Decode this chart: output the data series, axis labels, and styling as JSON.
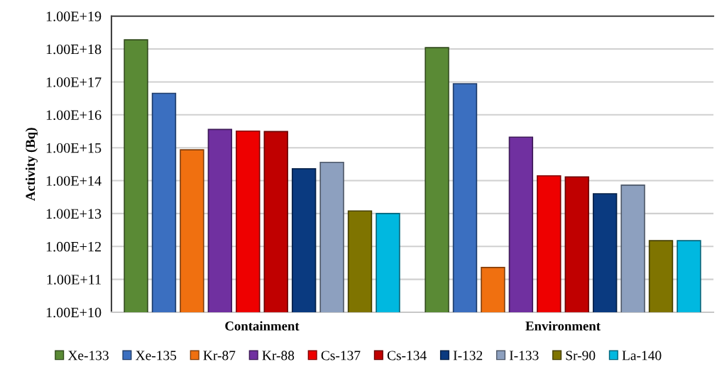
{
  "chart_data": {
    "type": "bar",
    "ylabel": "Activity (Bq)",
    "categories": [
      "Containment",
      "Environment"
    ],
    "log": "y",
    "ylim": [
      10000000000.0,
      1e+19
    ],
    "yticks": [
      {
        "value": 10000000000.0,
        "label": "1.00E+10"
      },
      {
        "value": 100000000000.0,
        "label": "1.00E+11"
      },
      {
        "value": 1000000000000.0,
        "label": "1.00E+12"
      },
      {
        "value": 10000000000000.0,
        "label": "1.00E+13"
      },
      {
        "value": 100000000000000.0,
        "label": "1.00E+14"
      },
      {
        "value": 1000000000000000.0,
        "label": "1.00E+15"
      },
      {
        "value": 1e+16,
        "label": "1.00E+16"
      },
      {
        "value": 1e+17,
        "label": "1.00E+17"
      },
      {
        "value": 1e+18,
        "label": "1.00E+18"
      },
      {
        "value": 1e+19,
        "label": "1.00E+19"
      }
    ],
    "grid": "y",
    "legend": "bottom",
    "series": [
      {
        "name": "Xe-133",
        "color": "#5a8a35",
        "values": [
          1.9e+18,
          1.1e+18
        ]
      },
      {
        "name": "Xe-135",
        "color": "#3b6fc0",
        "values": [
          4.5e+16,
          8.8e+16
        ]
      },
      {
        "name": "Kr-87",
        "color": "#f07010",
        "values": [
          860000000000000.0,
          230000000000.0
        ]
      },
      {
        "name": "Kr-88",
        "color": "#7030a0",
        "values": [
          3600000000000000.0,
          2100000000000000.0
        ]
      },
      {
        "name": "Cs-137",
        "color": "#ee0000",
        "values": [
          3200000000000000.0,
          140000000000000.0
        ]
      },
      {
        "name": "Cs-134",
        "color": "#c00000",
        "values": [
          3100000000000000.0,
          130000000000000.0
        ]
      },
      {
        "name": "I-132",
        "color": "#0a3a80",
        "values": [
          230000000000000.0,
          40000000000000.0
        ]
      },
      {
        "name": "I-133",
        "color": "#8da0bf",
        "values": [
          360000000000000.0,
          73000000000000.0
        ]
      },
      {
        "name": "Sr-90",
        "color": "#7f7400",
        "values": [
          12000000000000.0,
          1500000000000.0
        ]
      },
      {
        "name": "La-140",
        "color": "#00b8e0",
        "values": [
          10000000000000.0,
          1500000000000.0
        ]
      }
    ]
  }
}
